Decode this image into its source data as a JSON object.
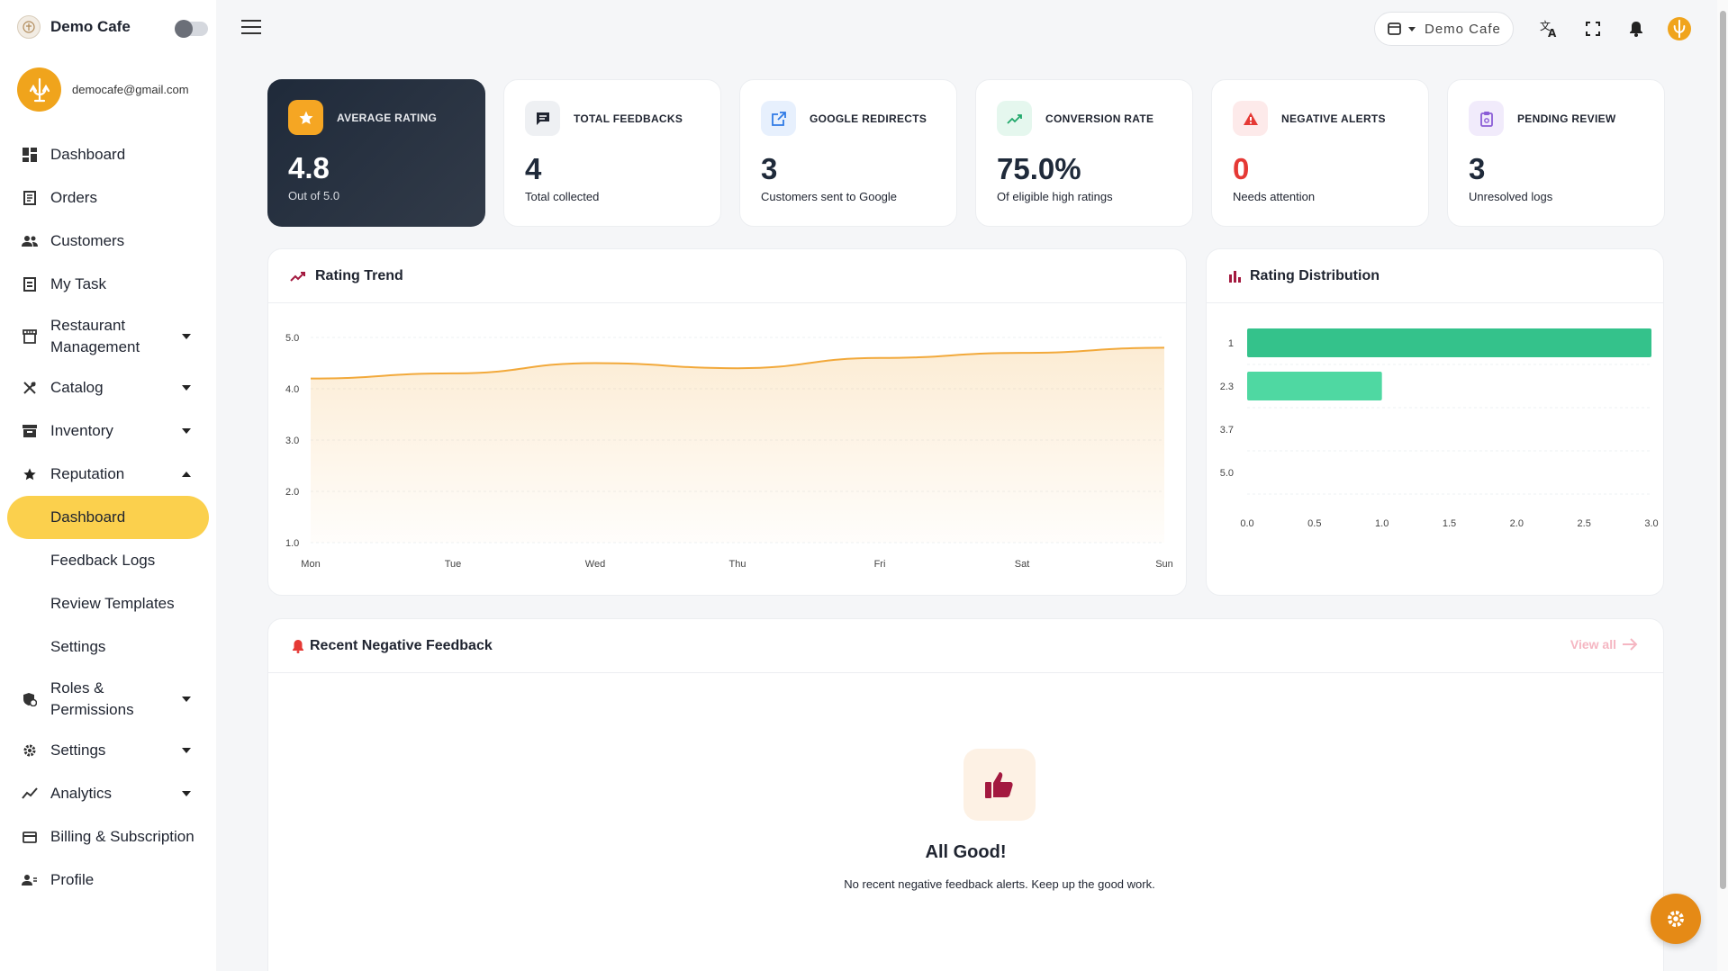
{
  "app": {
    "name": "Demo Cafe"
  },
  "user": {
    "email": "democafe@gmail.com"
  },
  "nav": [
    {
      "label": "Dashboard"
    },
    {
      "label": "Orders"
    },
    {
      "label": "Customers"
    },
    {
      "label": "My Task"
    },
    {
      "label": "Restaurant Management"
    },
    {
      "label": "Catalog"
    },
    {
      "label": "Inventory"
    },
    {
      "label": "Reputation"
    },
    {
      "label": "Roles & Permissions"
    },
    {
      "label": "Settings"
    },
    {
      "label": "Analytics"
    },
    {
      "label": "Billing & Subscription"
    },
    {
      "label": "Profile"
    }
  ],
  "reputation_sub": [
    {
      "label": "Dashboard",
      "active": true
    },
    {
      "label": "Feedback Logs"
    },
    {
      "label": "Review Templates"
    },
    {
      "label": "Settings"
    }
  ],
  "header": {
    "store_name": "Demo Cafe"
  },
  "stats": [
    {
      "title": "AVERAGE RATING",
      "value": "4.8",
      "sub": "Out of 5.0",
      "icon": "star-icon"
    },
    {
      "title": "TOTAL FEEDBACKS",
      "value": "4",
      "sub": "Total collected",
      "icon": "chat-icon"
    },
    {
      "title": "GOOGLE REDIRECTS",
      "value": "3",
      "sub": "Customers sent to Google",
      "icon": "external-link-icon"
    },
    {
      "title": "CONVERSION RATE",
      "value": "75.0%",
      "sub": "Of eligible high ratings",
      "icon": "trending-up-icon"
    },
    {
      "title": "NEGATIVE ALERTS",
      "value": "0",
      "sub": "Needs attention",
      "icon": "warning-icon",
      "value_color": "#e53935"
    },
    {
      "title": "PENDING REVIEW",
      "value": "3",
      "sub": "Unresolved logs",
      "icon": "clipboard-icon"
    }
  ],
  "trend_panel": {
    "title": "Rating Trend"
  },
  "distribution_panel": {
    "title": "Rating Distribution"
  },
  "chart_data": [
    {
      "type": "area",
      "title": "Rating Trend",
      "categories": [
        "Mon",
        "Tue",
        "Wed",
        "Thu",
        "Fri",
        "Sat",
        "Sun"
      ],
      "values": [
        4.2,
        4.3,
        4.5,
        4.4,
        4.6,
        4.7,
        4.8
      ],
      "yticks": [
        "1.0",
        "2.0",
        "3.0",
        "4.0",
        "5.0"
      ],
      "ylim": [
        1,
        5
      ],
      "color": "#f2a93b"
    },
    {
      "type": "bar",
      "orientation": "horizontal",
      "title": "Rating Distribution",
      "categories": [
        "1",
        "2.3",
        "3.7",
        "5.0"
      ],
      "values": [
        3,
        1,
        0,
        0
      ],
      "xticks": [
        "0.0",
        "0.5",
        "1.0",
        "1.5",
        "2.0",
        "2.5",
        "3.0"
      ],
      "xlim": [
        0,
        3
      ],
      "colors": [
        "#34c28b",
        "#4fd8a2"
      ]
    }
  ],
  "negative_panel": {
    "title": "Recent Negative Feedback",
    "view_all": "View all",
    "empty_title": "All Good!",
    "empty_msg": "No recent negative feedback alerts. Keep up the good work."
  },
  "colors": {
    "accent": "#fbd04d",
    "brand_orange": "#f0a41c",
    "danger": "#e53935"
  }
}
